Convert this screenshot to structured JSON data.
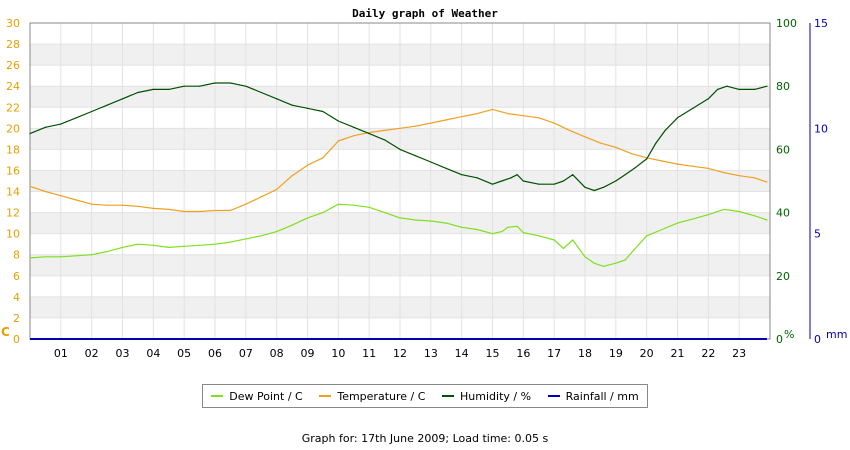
{
  "chart_data": {
    "type": "line",
    "title": "Daily graph of Weather",
    "x_ticks": [
      "01",
      "02",
      "03",
      "04",
      "05",
      "06",
      "07",
      "08",
      "09",
      "10",
      "11",
      "12",
      "13",
      "14",
      "15",
      "16",
      "17",
      "18",
      "19",
      "20",
      "21",
      "22",
      "23"
    ],
    "x_range": [
      0,
      24
    ],
    "axes": {
      "left": {
        "unit": "C",
        "range": [
          0,
          30
        ],
        "ticks": [
          "0",
          "2",
          "4",
          "6",
          "8",
          "10",
          "12",
          "14",
          "16",
          "18",
          "20",
          "22",
          "24",
          "26",
          "28",
          "30"
        ],
        "color": "#e6a000"
      },
      "middle": {
        "unit": "%",
        "range": [
          0,
          100
        ],
        "ticks": [
          "0",
          "20",
          "40",
          "60",
          "80",
          "100"
        ],
        "color": "#006400"
      },
      "right": {
        "unit": "mm",
        "range": [
          0,
          15
        ],
        "ticks": [
          "0",
          "5",
          "10",
          "15"
        ],
        "color": "#0000b0"
      }
    },
    "grid": true,
    "legend_position": "bottom",
    "series": [
      {
        "name": "Dew Point / C",
        "axis": "left",
        "color": "#7ee01e",
        "x": [
          0,
          0.5,
          1,
          1.5,
          2,
          2.5,
          3,
          3.5,
          4,
          4.5,
          5,
          5.5,
          6,
          6.5,
          7,
          7.5,
          8,
          8.5,
          9,
          9.5,
          10,
          10.5,
          11,
          11.5,
          12,
          12.5,
          13,
          13.5,
          14,
          14.5,
          15,
          15.3,
          15.5,
          15.8,
          16,
          16.5,
          17,
          17.3,
          17.6,
          18,
          18.3,
          18.6,
          19,
          19.3,
          19.6,
          20,
          20.5,
          21,
          21.5,
          22,
          22.5,
          23,
          23.5,
          23.9
        ],
        "y": [
          7.7,
          7.8,
          7.8,
          7.9,
          8.0,
          8.3,
          8.7,
          9.0,
          8.9,
          8.7,
          8.8,
          8.9,
          9.0,
          9.2,
          9.5,
          9.8,
          10.2,
          10.8,
          11.5,
          12.0,
          12.8,
          12.7,
          12.5,
          12.0,
          11.5,
          11.3,
          11.2,
          11.0,
          10.6,
          10.4,
          10.0,
          10.2,
          10.6,
          10.7,
          10.1,
          9.8,
          9.4,
          8.6,
          9.4,
          7.8,
          7.2,
          6.9,
          7.2,
          7.5,
          8.5,
          9.8,
          10.4,
          11.0,
          11.4,
          11.8,
          12.3,
          12.1,
          11.7,
          11.3
        ]
      },
      {
        "name": "Temperature / C",
        "axis": "left",
        "color": "#f0a020",
        "x": [
          0,
          0.5,
          1,
          1.5,
          2,
          2.5,
          3,
          3.5,
          4,
          4.5,
          5,
          5.5,
          6,
          6.5,
          7,
          7.5,
          8,
          8.5,
          9,
          9.5,
          10,
          10.5,
          11,
          11.5,
          12,
          12.5,
          13,
          13.5,
          14,
          14.5,
          15,
          15.5,
          16,
          16.5,
          17,
          17.5,
          18,
          18.5,
          19,
          19.5,
          20,
          20.5,
          21,
          21.5,
          22,
          22.5,
          23,
          23.5,
          23.9
        ],
        "y": [
          14.5,
          14.0,
          13.6,
          13.2,
          12.8,
          12.7,
          12.7,
          12.6,
          12.4,
          12.3,
          12.1,
          12.1,
          12.2,
          12.2,
          12.8,
          13.5,
          14.2,
          15.5,
          16.5,
          17.2,
          18.8,
          19.3,
          19.6,
          19.8,
          20.0,
          20.2,
          20.5,
          20.8,
          21.1,
          21.4,
          21.8,
          21.4,
          21.2,
          21.0,
          20.5,
          19.8,
          19.2,
          18.6,
          18.2,
          17.6,
          17.2,
          16.9,
          16.6,
          16.4,
          16.2,
          15.8,
          15.5,
          15.3,
          14.9
        ]
      },
      {
        "name": "Humidity / %",
        "axis": "middle",
        "color": "#005000",
        "x": [
          0,
          0.5,
          1,
          1.5,
          2,
          2.5,
          3,
          3.5,
          4,
          4.5,
          5,
          5.5,
          6,
          6.5,
          7,
          7.5,
          8,
          8.5,
          9,
          9.5,
          10,
          10.5,
          11,
          11.5,
          12,
          12.5,
          13,
          13.5,
          14,
          14.5,
          15,
          15.3,
          15.6,
          15.8,
          16,
          16.5,
          17,
          17.3,
          17.6,
          18,
          18.3,
          18.6,
          19,
          19.3,
          19.6,
          20,
          20.3,
          20.6,
          21,
          21.5,
          22,
          22.3,
          22.6,
          23,
          23.5,
          23.9
        ],
        "y": [
          65,
          67,
          68,
          70,
          72,
          74,
          76,
          78,
          79,
          79,
          80,
          80,
          81,
          81,
          80,
          78,
          76,
          74,
          73,
          72,
          69,
          67,
          65,
          63,
          60,
          58,
          56,
          54,
          52,
          51,
          49,
          50,
          51,
          52,
          50,
          49,
          49,
          50,
          52,
          48,
          47,
          48,
          50,
          52,
          54,
          57,
          62,
          66,
          70,
          73,
          76,
          79,
          80,
          79,
          79,
          80
        ]
      },
      {
        "name": "Rainfall / mm",
        "axis": "right",
        "color": "#0000b0",
        "x": [
          0,
          23.9
        ],
        "y": [
          0,
          0
        ]
      }
    ]
  },
  "footer": "Graph for: 17th June 2009; Load time: 0.05 s"
}
